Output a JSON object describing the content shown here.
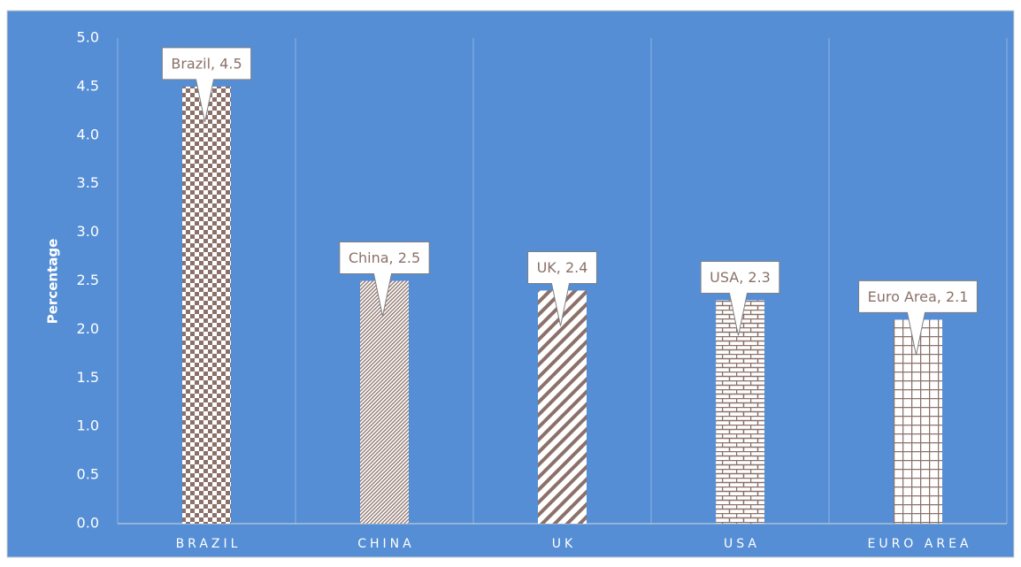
{
  "chart_data": {
    "type": "bar",
    "y_label": "Percentage",
    "categories": [
      "BRAZIL",
      "CHINA",
      "UK",
      "USA",
      "EURO AREA"
    ],
    "values": [
      4.5,
      2.5,
      2.4,
      2.3,
      2.1
    ],
    "value_labels": [
      "Brazil, 4.5",
      "China, 2.5",
      "UK, 2.4",
      "USA, 2.3",
      "Euro Area, 2.1"
    ],
    "color": "#8b7169",
    "patterns": [
      "checker",
      "fine-diagonal",
      "wide-diagonal",
      "brick",
      "grid"
    ],
    "ylim": [
      0,
      5
    ],
    "yticks": [
      {
        "value": 0,
        "label": "0.0"
      },
      {
        "value": 0.5,
        "label": "0.5"
      },
      {
        "value": 1,
        "label": "1.0"
      },
      {
        "value": 1.5,
        "label": "1.5"
      },
      {
        "value": 2,
        "label": "2.0"
      },
      {
        "value": 2.5,
        "label": "2.5"
      },
      {
        "value": 3,
        "label": "3.0"
      },
      {
        "value": 3.5,
        "label": "3.5"
      },
      {
        "value": 4,
        "label": "4.0"
      },
      {
        "value": 4.5,
        "label": "4.5"
      },
      {
        "value": 5,
        "label": "5.0"
      }
    ],
    "grid": true
  }
}
